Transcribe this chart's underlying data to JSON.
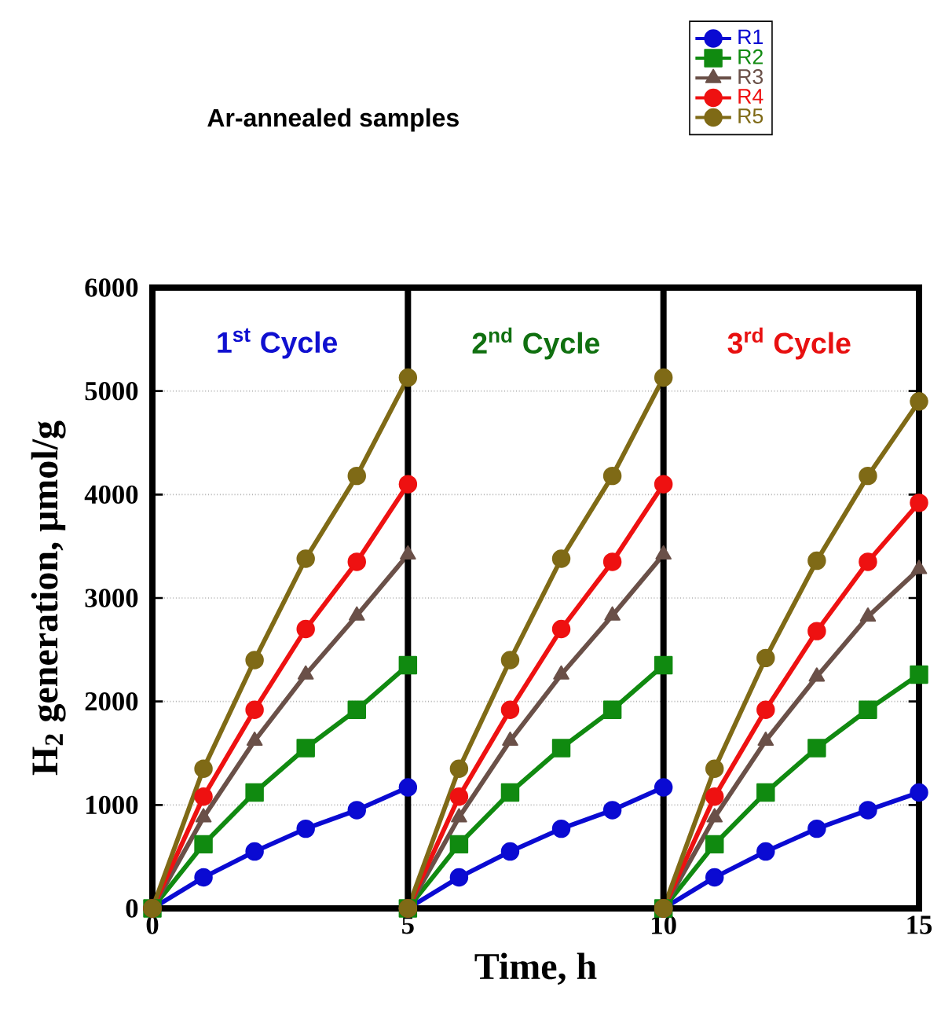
{
  "chart_data": {
    "type": "line",
    "title": "Ar-annealed samples",
    "xlabel": "Time, h",
    "ylabel": "H$_{2}$ generation, μmol/g",
    "xlim": [
      0,
      15
    ],
    "xticks": [
      0,
      5,
      10,
      15
    ],
    "ylim": [
      0,
      6000
    ],
    "yticks": [
      0,
      1000,
      2000,
      3000,
      4000,
      5000,
      6000
    ],
    "grid": "y",
    "legend": "top right",
    "line_style": "solid",
    "ref_lines": [
      {
        "axis": "x",
        "value": 5,
        "color": "#000000"
      },
      {
        "axis": "x",
        "value": 10,
        "color": "#000000"
      }
    ],
    "annotations": [
      "1$^{st}$ Cycle",
      "2$^{nd}$ Cycle",
      "3$^{rd}$ Cycle"
    ],
    "series": [
      {
        "name": "R1",
        "color": "#0a0ad2",
        "marker": "circle",
        "x": [
          0,
          1,
          2,
          3,
          4,
          5,
          5,
          6,
          7,
          8,
          9,
          10,
          10,
          11,
          12,
          13,
          14,
          15
        ],
        "values": [
          0,
          300,
          550,
          770,
          950,
          1170,
          0,
          300,
          550,
          770,
          950,
          1170,
          0,
          300,
          550,
          770,
          950,
          1120
        ]
      },
      {
        "name": "R2",
        "color": "#108a10",
        "marker": "square",
        "x": [
          0,
          1,
          2,
          3,
          4,
          5,
          5,
          6,
          7,
          8,
          9,
          10,
          10,
          11,
          12,
          13,
          14,
          15
        ],
        "values": [
          0,
          620,
          1120,
          1550,
          1920,
          2350,
          0,
          620,
          1120,
          1550,
          1920,
          2350,
          0,
          620,
          1120,
          1550,
          1920,
          2260
        ]
      },
      {
        "name": "R3",
        "color": "#6a5048",
        "marker": "triangle",
        "x": [
          0,
          1,
          2,
          3,
          4,
          5,
          5,
          6,
          7,
          8,
          9,
          10,
          10,
          11,
          12,
          13,
          14,
          15
        ],
        "values": [
          0,
          880,
          1620,
          2260,
          2830,
          3420,
          0,
          880,
          1620,
          2260,
          2830,
          3420,
          0,
          880,
          1620,
          2240,
          2820,
          3280
        ]
      },
      {
        "name": "R4",
        "color": "#ee1111",
        "marker": "circle",
        "x": [
          0,
          1,
          2,
          3,
          4,
          5,
          5,
          6,
          7,
          8,
          9,
          10,
          10,
          11,
          12,
          13,
          14,
          15
        ],
        "values": [
          0,
          1080,
          1920,
          2700,
          3350,
          4100,
          0,
          1080,
          1920,
          2700,
          3350,
          4100,
          0,
          1080,
          1920,
          2680,
          3350,
          3920
        ]
      },
      {
        "name": "R5",
        "color": "#7f6a16",
        "marker": "circle",
        "x": [
          0,
          1,
          2,
          3,
          4,
          5,
          5,
          6,
          7,
          8,
          9,
          10,
          10,
          11,
          12,
          13,
          14,
          15
        ],
        "values": [
          0,
          1350,
          2400,
          3380,
          4180,
          5130,
          0,
          1350,
          2400,
          3380,
          4180,
          5130,
          0,
          1350,
          2420,
          3360,
          4180,
          4900
        ]
      }
    ]
  }
}
